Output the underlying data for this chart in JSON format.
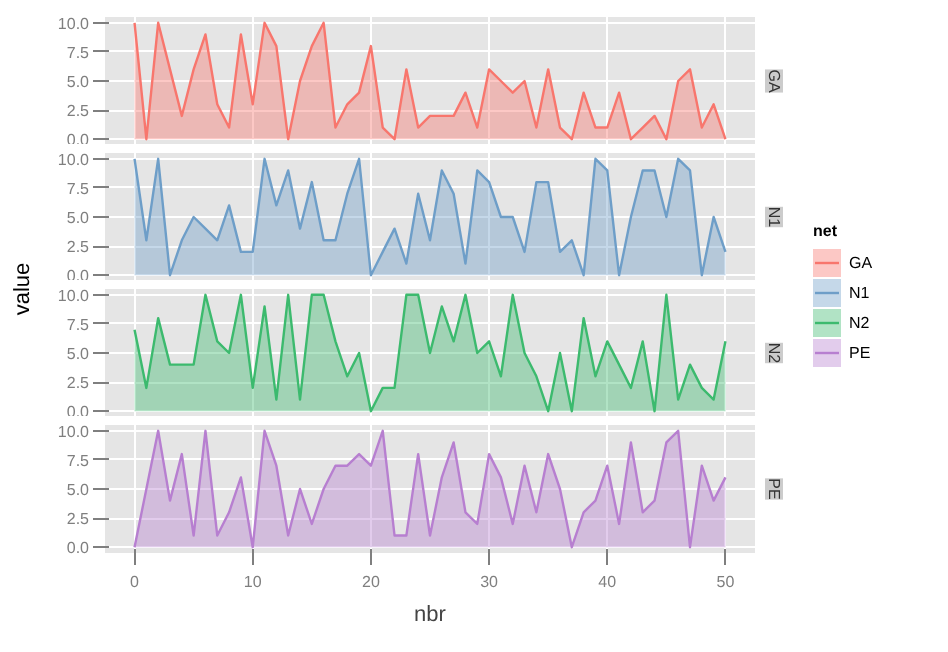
{
  "chart_data": [
    {
      "type": "area",
      "legend_title": "net",
      "legend": "right",
      "grid": true,
      "tick_labels": "y",
      "x": [
        0,
        1,
        2,
        3,
        4,
        5,
        6,
        7,
        8,
        9,
        10,
        11,
        12,
        13,
        14,
        15,
        16,
        17,
        18,
        19,
        20,
        21,
        22,
        23,
        24,
        25,
        26,
        27,
        28,
        29,
        30,
        31,
        32,
        33,
        34,
        35,
        36,
        37,
        38,
        39,
        40,
        41,
        42,
        43,
        44,
        45,
        46,
        47,
        48,
        49,
        50
      ],
      "xlim": [
        -2.5,
        52.5
      ],
      "xticks": [
        0,
        10,
        20,
        30,
        40,
        50
      ],
      "ylim": [
        -0.5,
        10.5
      ],
      "yticks": [
        {
          "value": 0,
          "label": "0.0"
        },
        {
          "value": 2.5,
          "label": "2.5"
        },
        {
          "value": 5,
          "label": "5.0"
        },
        {
          "value": 7.5,
          "label": "7.5"
        },
        {
          "value": 10,
          "label": "10.0"
        }
      ],
      "series": [
        {
          "name": "GA",
          "color": "#f8766d",
          "values": [
            10,
            0,
            10,
            6,
            2,
            6,
            9,
            3,
            1,
            9,
            3,
            10,
            8,
            0,
            5,
            8,
            10,
            1,
            3,
            4,
            8,
            1,
            0,
            6,
            1,
            2,
            2,
            2,
            4,
            1,
            6,
            5,
            4,
            5,
            1,
            6,
            1,
            0,
            4,
            1,
            1,
            4,
            0,
            1,
            2,
            0,
            5,
            6,
            1,
            3,
            0
          ]
        }
      ]
    },
    {
      "type": "area",
      "ylabel": "value",
      "legend": "right",
      "grid": true,
      "tick_labels": "y",
      "x": [
        0,
        1,
        2,
        3,
        4,
        5,
        6,
        7,
        8,
        9,
        10,
        11,
        12,
        13,
        14,
        15,
        16,
        17,
        18,
        19,
        20,
        21,
        22,
        23,
        24,
        25,
        26,
        27,
        28,
        29,
        30,
        31,
        32,
        33,
        34,
        35,
        36,
        37,
        38,
        39,
        40,
        41,
        42,
        43,
        44,
        45,
        46,
        47,
        48,
        49,
        50
      ],
      "xlim": [
        -2.5,
        52.5
      ],
      "xticks": [
        0,
        10,
        20,
        30,
        40,
        50
      ],
      "ylim": [
        -0.5,
        10.5
      ],
      "yticks": [
        {
          "value": 0,
          "label": "0.0"
        },
        {
          "value": 2.5,
          "label": "2.5"
        },
        {
          "value": 5,
          "label": "5.0"
        },
        {
          "value": 7.5,
          "label": "7.5"
        },
        {
          "value": 10,
          "label": "10.0"
        }
      ],
      "series": [
        {
          "name": "N1",
          "color": "#6e9ec8",
          "values": [
            10,
            3,
            10,
            0,
            3,
            5,
            4,
            3,
            6,
            2,
            2,
            10,
            6,
            9,
            4,
            8,
            3,
            3,
            7,
            10,
            0,
            2,
            4,
            1,
            7,
            3,
            9,
            7,
            1,
            9,
            8,
            5,
            5,
            2,
            8,
            8,
            2,
            3,
            0,
            10,
            9,
            0,
            5,
            9,
            9,
            5,
            10,
            9,
            0,
            5,
            2
          ]
        }
      ]
    },
    {
      "type": "area",
      "legend": "right",
      "grid": true,
      "tick_labels": "y",
      "x": [
        0,
        1,
        2,
        3,
        4,
        5,
        6,
        7,
        8,
        9,
        10,
        11,
        12,
        13,
        14,
        15,
        16,
        17,
        18,
        19,
        20,
        21,
        22,
        23,
        24,
        25,
        26,
        27,
        28,
        29,
        30,
        31,
        32,
        33,
        34,
        35,
        36,
        37,
        38,
        39,
        40,
        41,
        42,
        43,
        44,
        45,
        46,
        47,
        48,
        49,
        50
      ],
      "xlim": [
        -2.5,
        52.5
      ],
      "xticks": [
        0,
        10,
        20,
        30,
        40,
        50
      ],
      "ylim": [
        -0.5,
        10.5
      ],
      "yticks": [
        {
          "value": 0,
          "label": "0.0"
        },
        {
          "value": 2.5,
          "label": "2.5"
        },
        {
          "value": 5,
          "label": "5.0"
        },
        {
          "value": 7.5,
          "label": "7.5"
        },
        {
          "value": 10,
          "label": "10.0"
        }
      ],
      "series": [
        {
          "name": "N2",
          "color": "#3cba6e",
          "values": [
            7,
            2,
            8,
            4,
            4,
            4,
            10,
            6,
            5,
            10,
            2,
            9,
            1,
            10,
            1,
            10,
            10,
            6,
            3,
            5,
            0,
            2,
            2,
            10,
            10,
            5,
            9,
            6,
            10,
            5,
            6,
            3,
            10,
            5,
            3,
            0,
            5,
            0,
            8,
            3,
            6,
            4,
            2,
            6,
            0,
            10,
            1,
            4,
            2,
            1,
            6
          ]
        }
      ]
    },
    {
      "type": "area",
      "xlabel": "nbr",
      "legend": "right",
      "grid": true,
      "x": [
        0,
        1,
        2,
        3,
        4,
        5,
        6,
        7,
        8,
        9,
        10,
        11,
        12,
        13,
        14,
        15,
        16,
        17,
        18,
        19,
        20,
        21,
        22,
        23,
        24,
        25,
        26,
        27,
        28,
        29,
        30,
        31,
        32,
        33,
        34,
        35,
        36,
        37,
        38,
        39,
        40,
        41,
        42,
        43,
        44,
        45,
        46,
        47,
        48,
        49,
        50
      ],
      "xlim": [
        -2.5,
        52.5
      ],
      "xticks": [
        0,
        10,
        20,
        30,
        40,
        50
      ],
      "ylim": [
        -0.5,
        10.5
      ],
      "yticks": [
        {
          "value": 0,
          "label": "0.0"
        },
        {
          "value": 2.5,
          "label": "2.5"
        },
        {
          "value": 5,
          "label": "5.0"
        },
        {
          "value": 7.5,
          "label": "7.5"
        },
        {
          "value": 10,
          "label": "10.0"
        }
      ],
      "series": [
        {
          "name": "PE",
          "color": "#b77fd0",
          "values": [
            0,
            5,
            10,
            4,
            8,
            1,
            10,
            1,
            3,
            6,
            0,
            10,
            7,
            1,
            5,
            2,
            5,
            7,
            7,
            8,
            7,
            10,
            1,
            1,
            8,
            1,
            6,
            9,
            3,
            2,
            8,
            6,
            2,
            7,
            3,
            8,
            5,
            0,
            3,
            4,
            7,
            2,
            9,
            3,
            4,
            9,
            10,
            0,
            7,
            4,
            6
          ]
        }
      ]
    }
  ]
}
